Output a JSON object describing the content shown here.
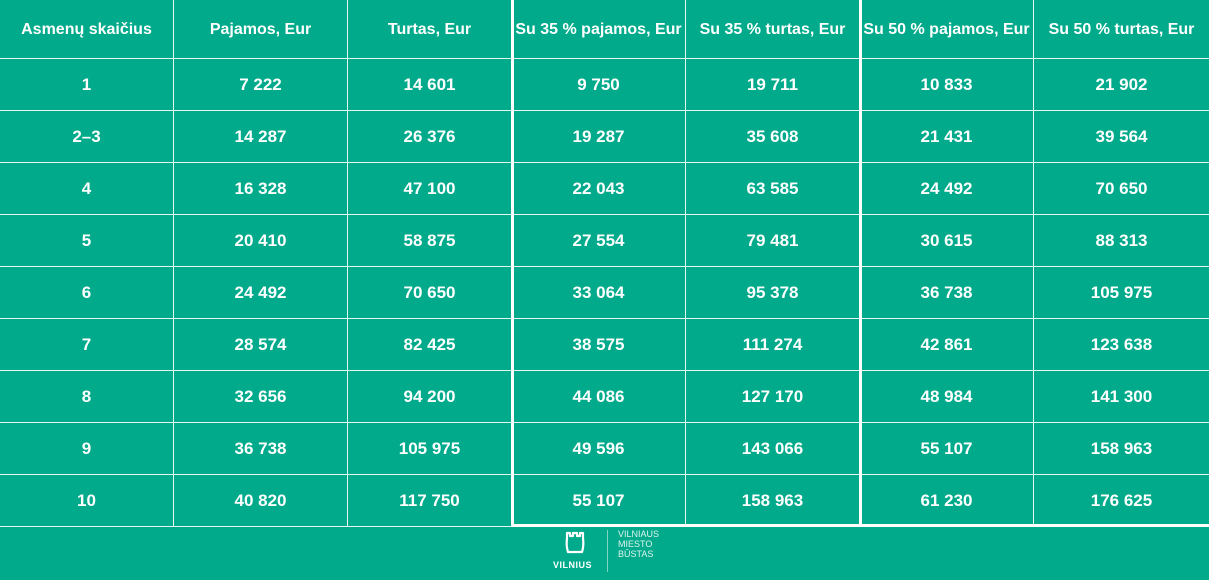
{
  "table": {
    "headers": [
      "Asmenų skaičius",
      "Pajamos, Eur",
      "Turtas, Eur",
      "Su 35 % pajamos, Eur",
      "Su 35 % turtas, Eur",
      "Su 50 % pajamos, Eur",
      "Su 50 % turtas, Eur"
    ],
    "rows": [
      [
        "1",
        "7 222",
        "14 601",
        "9 750",
        "19 711",
        "10 833",
        "21 902"
      ],
      [
        "2–3",
        "14 287",
        "26 376",
        "19 287",
        "35 608",
        "21 431",
        "39 564"
      ],
      [
        "4",
        "16 328",
        "47 100",
        "22 043",
        "63 585",
        "24 492",
        "70 650"
      ],
      [
        "5",
        "20 410",
        "58 875",
        "27 554",
        "79 481",
        "30 615",
        "88 313"
      ],
      [
        "6",
        "24 492",
        "70 650",
        "33 064",
        "95 378",
        "36 738",
        "105 975"
      ],
      [
        "7",
        "28 574",
        "82 425",
        "38 575",
        "111 274",
        "42 861",
        "123 638"
      ],
      [
        "8",
        "32 656",
        "94 200",
        "44 086",
        "127 170",
        "48 984",
        "141 300"
      ],
      [
        "9",
        "36 738",
        "105 975",
        "49 596",
        "143 066",
        "55 107",
        "158 963"
      ],
      [
        "10",
        "40 820",
        "117 750",
        "55 107",
        "158 963",
        "61 230",
        "176 625"
      ]
    ]
  },
  "logo": {
    "word": "VILNIUS",
    "line1": "VILNIAUS",
    "line2": "MIESTO",
    "line3": "BŪSTAS"
  },
  "colors": {
    "background": "#00aa8b",
    "lines": "#ffffff"
  }
}
